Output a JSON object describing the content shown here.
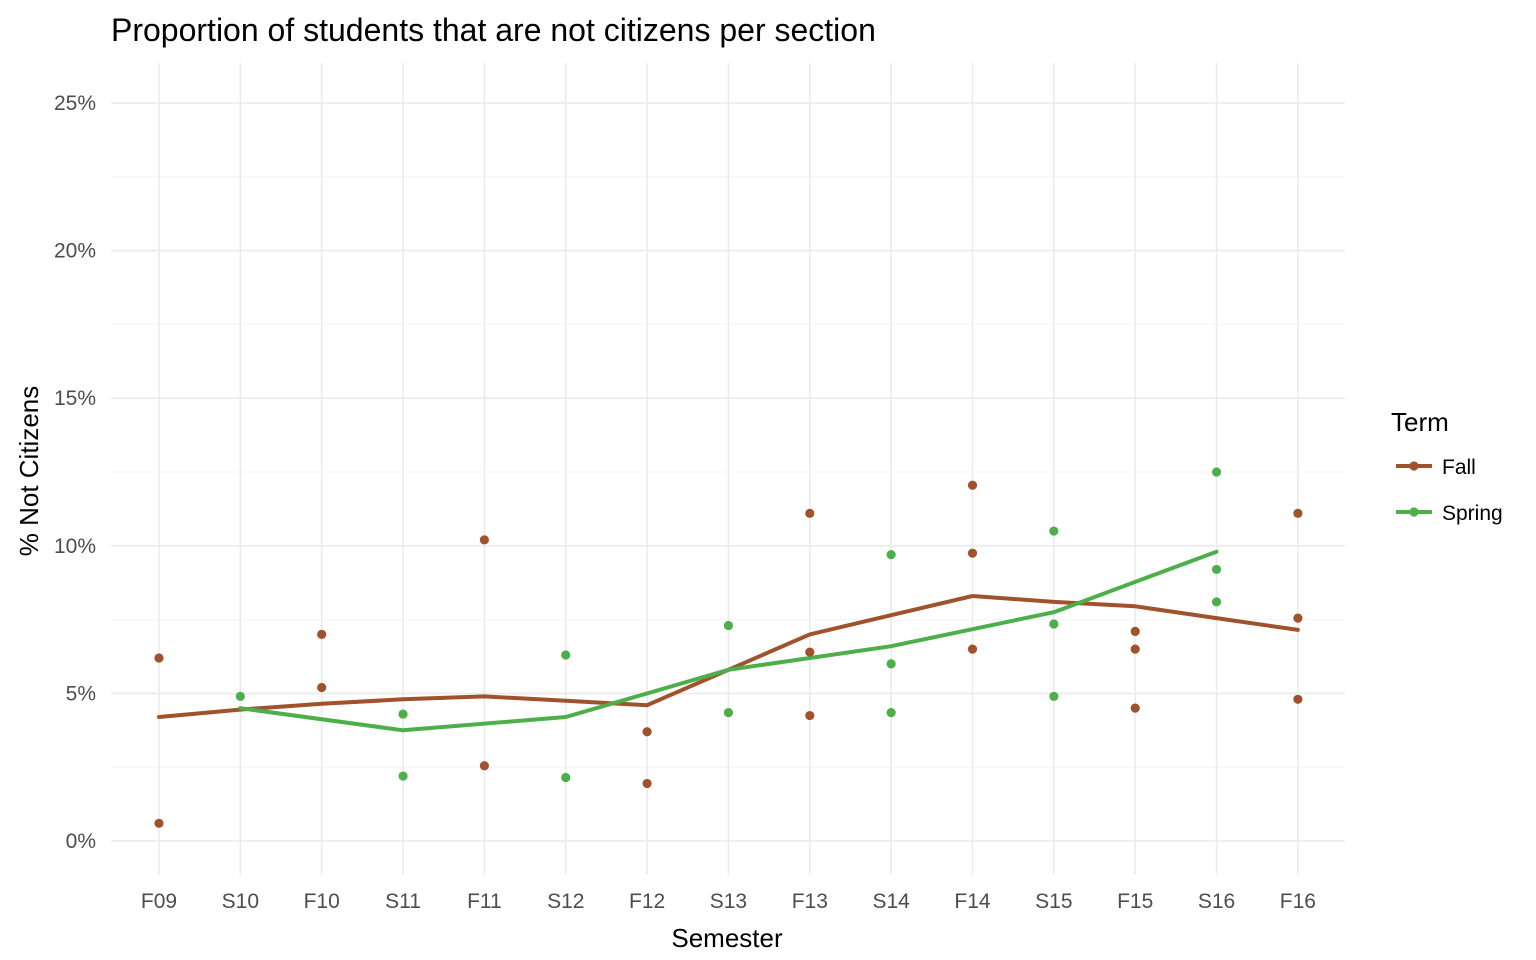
{
  "chart_data": {
    "type": "line",
    "title": "Proportion of students that are not citizens per section",
    "xlabel": "Semester",
    "ylabel": "% Not Citizens",
    "categories": [
      "F09",
      "S10",
      "F10",
      "S11",
      "F11",
      "S12",
      "F12",
      "S13",
      "F13",
      "S14",
      "F14",
      "S15",
      "F15",
      "S16",
      "F16"
    ],
    "yticks": [
      0,
      5,
      10,
      15,
      20,
      25
    ],
    "ytick_labels": [
      "0%",
      "5%",
      "10%",
      "15%",
      "20%",
      "25%"
    ],
    "ylim": [
      -1,
      26.3
    ],
    "grid": true,
    "legend": {
      "title": "Term",
      "placement": "right",
      "entries": [
        "Fall",
        "Spring"
      ]
    },
    "series": [
      {
        "name": "Fall",
        "color": "#A0522D",
        "trend": [
          {
            "x": "F09",
            "y": 4.2
          },
          {
            "x": "S10",
            "y": 4.45
          },
          {
            "x": "F10",
            "y": 4.65
          },
          {
            "x": "S11",
            "y": 4.8
          },
          {
            "x": "F11",
            "y": 4.9
          },
          {
            "x": "S12",
            "y": 4.75
          },
          {
            "x": "F12",
            "y": 4.6
          },
          {
            "x": "S13",
            "y": 5.8
          },
          {
            "x": "F13",
            "y": 7.0
          },
          {
            "x": "S14",
            "y": 7.65
          },
          {
            "x": "F14",
            "y": 8.3
          },
          {
            "x": "S15",
            "y": 8.1
          },
          {
            "x": "F15",
            "y": 7.95
          },
          {
            "x": "S16",
            "y": 7.55
          },
          {
            "x": "F16",
            "y": 7.15
          }
        ],
        "points": [
          {
            "x": "F09",
            "y": 6.2
          },
          {
            "x": "F09",
            "y": 0.6
          },
          {
            "x": "F10",
            "y": 7.0
          },
          {
            "x": "F10",
            "y": 5.2
          },
          {
            "x": "F11",
            "y": 10.2
          },
          {
            "x": "F11",
            "y": 2.55
          },
          {
            "x": "F12",
            "y": 3.7
          },
          {
            "x": "F12",
            "y": 1.95
          },
          {
            "x": "F13",
            "y": 11.1
          },
          {
            "x": "F13",
            "y": 6.4
          },
          {
            "x": "F13",
            "y": 4.25
          },
          {
            "x": "F14",
            "y": 12.05
          },
          {
            "x": "F14",
            "y": 9.75
          },
          {
            "x": "F14",
            "y": 6.5
          },
          {
            "x": "F15",
            "y": 7.1
          },
          {
            "x": "F15",
            "y": 6.5
          },
          {
            "x": "F15",
            "y": 4.5
          },
          {
            "x": "F16",
            "y": 11.1
          },
          {
            "x": "F16",
            "y": 7.55
          },
          {
            "x": "F16",
            "y": 4.8
          }
        ]
      },
      {
        "name": "Spring",
        "color": "#4DAF4A",
        "trend": [
          {
            "x": "S10",
            "y": 4.5
          },
          {
            "x": "S11",
            "y": 3.75
          },
          {
            "x": "S12",
            "y": 4.2
          },
          {
            "x": "S13",
            "y": 5.8
          },
          {
            "x": "S14",
            "y": 6.6
          },
          {
            "x": "S15",
            "y": 7.75
          },
          {
            "x": "S16",
            "y": 9.8
          }
        ],
        "points": [
          {
            "x": "S10",
            "y": 4.9
          },
          {
            "x": "S11",
            "y": 4.3
          },
          {
            "x": "S11",
            "y": 2.2
          },
          {
            "x": "S12",
            "y": 6.3
          },
          {
            "x": "S12",
            "y": 2.15
          },
          {
            "x": "S13",
            "y": 7.3
          },
          {
            "x": "S13",
            "y": 4.35
          },
          {
            "x": "S14",
            "y": 9.7
          },
          {
            "x": "S14",
            "y": 6.0
          },
          {
            "x": "S14",
            "y": 4.35
          },
          {
            "x": "S15",
            "y": 10.5
          },
          {
            "x": "S15",
            "y": 7.35
          },
          {
            "x": "S15",
            "y": 4.9
          },
          {
            "x": "S16",
            "y": 12.5
          },
          {
            "x": "S16",
            "y": 9.2
          },
          {
            "x": "S16",
            "y": 8.1
          }
        ]
      }
    ]
  }
}
